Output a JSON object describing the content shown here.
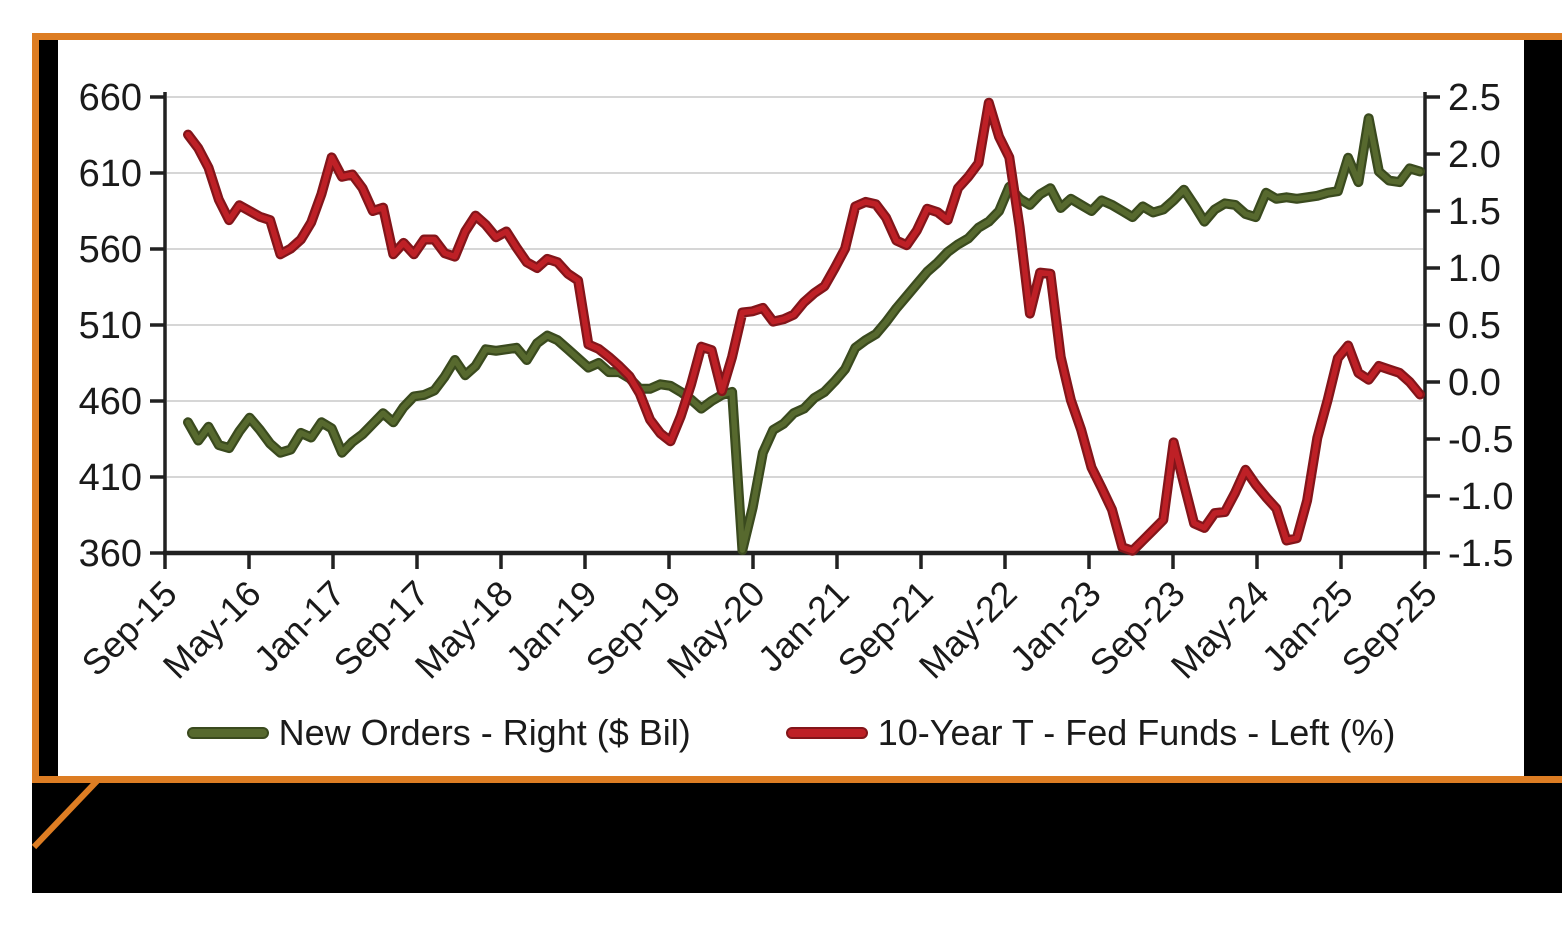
{
  "colors": {
    "page_background": "#FFFFFF",
    "frame_orange": "#DD7D23",
    "frame_black": "#000000",
    "panel_white": "#FFFFFF",
    "gridline": "#D6D6D6",
    "axis": "#212121",
    "label_text": "#1A1A1A",
    "green_core": "#57692E",
    "green_edge": "#3A4A1E",
    "red_core": "#BE2026",
    "red_edge": "#83151A"
  },
  "legend": {
    "items": [
      {
        "label": "New Orders - Right ($ Bil)",
        "swatch": "green-line"
      },
      {
        "label": "10-Year T - Fed Funds - Left (%)",
        "swatch": "red-line"
      }
    ]
  },
  "chart_data": {
    "type": "line",
    "title": "",
    "grid": "horizontal",
    "legend_position": "bottom",
    "frequency": "monthly",
    "x_start": "Oct-2015",
    "x_end": "Oct-2025",
    "x_tick_labels": [
      "Sep-15",
      "May-16",
      "Jan-17",
      "Sep-17",
      "May-18",
      "Jan-19",
      "Sep-19",
      "May-20",
      "Jan-21",
      "Sep-21",
      "May-22",
      "Jan-23",
      "Sep-23",
      "May-24",
      "Jan-25",
      "Sep-25"
    ],
    "left_axis": {
      "min": 360,
      "max": 660,
      "ticks": [
        660,
        610,
        560,
        510,
        460,
        410,
        360
      ],
      "tick_labels": [
        "660",
        "610",
        "560",
        "510",
        "460",
        "410",
        "360"
      ]
    },
    "right_axis": {
      "min": -1.5,
      "max": 2.5,
      "ticks": [
        2.5,
        2.0,
        1.5,
        1.0,
        0.5,
        0.0,
        -0.5,
        -1.0,
        -1.5
      ],
      "tick_labels": [
        "2.5",
        "2.0",
        "1.5",
        "1.0",
        "0.5",
        "0.0",
        "-0.5",
        "-1.0",
        "-1.5"
      ]
    },
    "x": [
      "Oct-15",
      "Nov-15",
      "Dec-15",
      "Jan-16",
      "Feb-16",
      "Mar-16",
      "Apr-16",
      "May-16",
      "Jun-16",
      "Jul-16",
      "Aug-16",
      "Sep-16",
      "Oct-16",
      "Nov-16",
      "Dec-16",
      "Jan-17",
      "Feb-17",
      "Mar-17",
      "Apr-17",
      "May-17",
      "Jun-17",
      "Jul-17",
      "Aug-17",
      "Sep-17",
      "Oct-17",
      "Nov-17",
      "Dec-17",
      "Jan-18",
      "Feb-18",
      "Mar-18",
      "Apr-18",
      "May-18",
      "Jun-18",
      "Jul-18",
      "Aug-18",
      "Sep-18",
      "Oct-18",
      "Nov-18",
      "Dec-18",
      "Jan-19",
      "Feb-19",
      "Mar-19",
      "Apr-19",
      "May-19",
      "Jun-19",
      "Jul-19",
      "Aug-19",
      "Sep-19",
      "Oct-19",
      "Nov-19",
      "Dec-19",
      "Jan-20",
      "Feb-20",
      "Mar-20",
      "Apr-20",
      "May-20",
      "Jun-20",
      "Jul-20",
      "Aug-20",
      "Sep-20",
      "Oct-20",
      "Nov-20",
      "Dec-20",
      "Jan-21",
      "Feb-21",
      "Mar-21",
      "Apr-21",
      "May-21",
      "Jun-21",
      "Jul-21",
      "Aug-21",
      "Sep-21",
      "Oct-21",
      "Nov-21",
      "Dec-21",
      "Jan-22",
      "Feb-22",
      "Mar-22",
      "Apr-22",
      "May-22",
      "Jun-22",
      "Jul-22",
      "Aug-22",
      "Sep-22",
      "Oct-22",
      "Nov-22",
      "Dec-22",
      "Jan-23",
      "Feb-23",
      "Mar-23",
      "Apr-23",
      "May-23",
      "Jun-23",
      "Jul-23",
      "Aug-23",
      "Sep-23",
      "Oct-23",
      "Nov-23",
      "Dec-23",
      "Jan-24",
      "Feb-24",
      "Mar-24",
      "Apr-24",
      "May-24",
      "Jun-24",
      "Jul-24",
      "Aug-24",
      "Sep-24",
      "Oct-24",
      "Nov-24",
      "Dec-24",
      "Jan-25",
      "Feb-25",
      "Mar-25",
      "Apr-25",
      "May-25",
      "Jun-25",
      "Jul-25",
      "Aug-25",
      "Sep-25",
      "Oct-25"
    ],
    "series": [
      {
        "name": "New Orders - Right ($ Bil)",
        "value_axis": "left",
        "color": "#57692E",
        "edge_color": "#3A4A1E",
        "values": [
          446,
          434,
          443,
          431,
          429,
          440,
          449,
          441,
          432,
          426,
          428,
          439,
          436,
          446,
          442,
          426,
          433,
          438,
          445,
          452,
          446,
          456,
          463,
          464,
          467,
          476,
          487,
          477,
          483,
          494,
          493,
          494,
          495,
          487,
          498,
          503,
          500,
          494,
          488,
          482,
          485,
          479,
          479,
          475,
          468,
          468,
          471,
          470,
          466,
          461,
          455,
          460,
          464,
          466,
          362,
          390,
          426,
          441,
          445,
          452,
          455,
          462,
          466,
          473,
          481,
          495,
          500,
          504,
          512,
          521,
          529,
          537,
          545,
          551,
          558,
          563,
          567,
          574,
          578,
          585,
          601,
          593,
          589,
          596,
          600,
          587,
          593,
          589,
          585,
          592,
          589,
          585,
          581,
          588,
          584,
          586,
          592,
          599,
          589,
          578,
          586,
          590,
          589,
          583,
          581,
          597,
          593,
          594,
          593,
          594,
          595,
          597,
          598,
          620,
          604,
          646,
          611,
          605,
          604,
          613,
          611
        ]
      },
      {
        "name": "10-Year T - Fed Funds - Left (%)",
        "value_axis": "right",
        "color": "#BE2026",
        "edge_color": "#83151A",
        "values": [
          2.17,
          2.05,
          1.88,
          1.6,
          1.42,
          1.55,
          1.5,
          1.45,
          1.42,
          1.12,
          1.17,
          1.25,
          1.4,
          1.65,
          1.97,
          1.8,
          1.82,
          1.7,
          1.5,
          1.53,
          1.12,
          1.22,
          1.12,
          1.25,
          1.25,
          1.13,
          1.1,
          1.32,
          1.46,
          1.38,
          1.27,
          1.32,
          1.18,
          1.05,
          1.0,
          1.08,
          1.05,
          0.95,
          0.89,
          0.33,
          0.29,
          0.22,
          0.14,
          0.05,
          -0.1,
          -0.33,
          -0.45,
          -0.52,
          -0.3,
          -0.02,
          0.31,
          0.28,
          -0.08,
          0.22,
          0.61,
          0.62,
          0.65,
          0.53,
          0.55,
          0.59,
          0.7,
          0.78,
          0.84,
          1.0,
          1.17,
          1.54,
          1.58,
          1.56,
          1.44,
          1.24,
          1.2,
          1.33,
          1.52,
          1.49,
          1.42,
          1.7,
          1.8,
          1.92,
          2.45,
          2.15,
          1.97,
          1.36,
          0.6,
          0.96,
          0.95,
          0.22,
          -0.16,
          -0.42,
          -0.75,
          -0.93,
          -1.12,
          -1.45,
          -1.48,
          -1.39,
          -1.3,
          -1.21,
          -0.53,
          -0.89,
          -1.24,
          -1.28,
          -1.15,
          -1.14,
          -0.97,
          -0.77,
          -0.9,
          -1.01,
          -1.11,
          -1.39,
          -1.37,
          -1.04,
          -0.49,
          -0.16,
          0.21,
          0.32,
          0.08,
          0.02,
          0.14,
          0.11,
          0.08,
          0.0,
          -0.11
        ]
      }
    ]
  }
}
